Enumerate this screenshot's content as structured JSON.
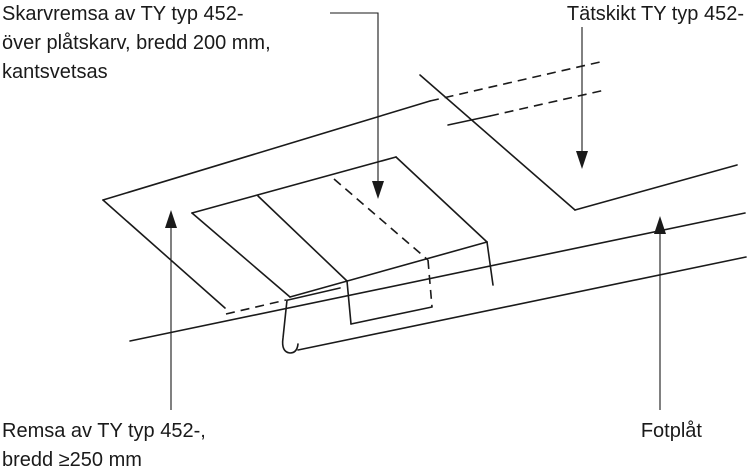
{
  "labels": {
    "skarvremsa": {
      "lines": [
        "Skarvremsa av TY typ 452-",
        "över plåtskarv, bredd 200 mm,",
        "kantsvetsas"
      ]
    },
    "tatskikt": {
      "lines": [
        "Tätskikt TY typ 452-"
      ]
    },
    "remsa": {
      "lines": [
        "Remsa av TY typ 452-,",
        "bredd ≥250 mm"
      ]
    },
    "fotplat": {
      "lines": [
        "Fotplåt"
      ]
    }
  },
  "colors": {
    "ink": "#1a1a1a",
    "background": "#ffffff"
  }
}
